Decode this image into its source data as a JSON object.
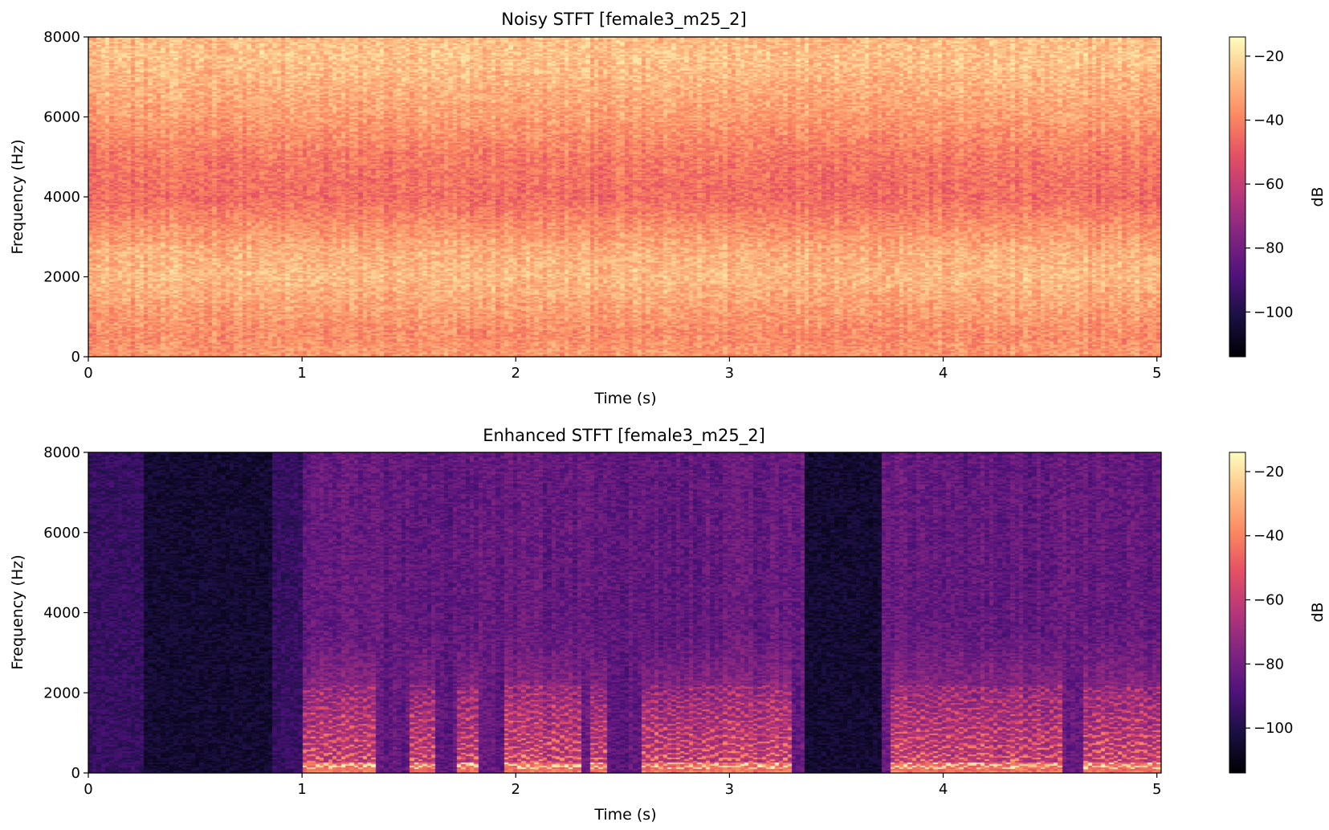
{
  "chart_data": [
    {
      "type": "heatmap",
      "title": "Noisy STFT [female3_m25_2]",
      "xlabel": "Time (s)",
      "ylabel": "Frequency (Hz)",
      "xlim": [
        0,
        5.02
      ],
      "ylim": [
        0,
        8000
      ],
      "xticks": [
        "0",
        "1",
        "2",
        "3",
        "4",
        "5"
      ],
      "yticks": [
        "0",
        "2000",
        "4000",
        "6000",
        "8000"
      ],
      "colormap": "magma",
      "colorbar": {
        "label": "dB",
        "range": [
          -114,
          -14
        ],
        "ticks": [
          "−20",
          "−40",
          "−60",
          "−80",
          "−100"
        ]
      },
      "profile": {
        "description_level_db_by_frequency": [
          {
            "freq_hz": 0,
            "db": -35
          },
          {
            "freq_hz": 600,
            "db": -38
          },
          {
            "freq_hz": 2000,
            "db": -28
          },
          {
            "freq_hz": 2600,
            "db": -30
          },
          {
            "freq_hz": 4000,
            "db": -45
          },
          {
            "freq_hz": 5000,
            "db": -42
          },
          {
            "freq_hz": 6000,
            "db": -34
          },
          {
            "freq_hz": 7500,
            "db": -26
          },
          {
            "freq_hz": 8000,
            "db": -28
          }
        ]
      }
    },
    {
      "type": "heatmap",
      "title": "Enhanced STFT [female3_m25_2]",
      "xlabel": "Time (s)",
      "ylabel": "Frequency (Hz)",
      "xlim": [
        0,
        5.02
      ],
      "ylim": [
        0,
        8000
      ],
      "xticks": [
        "0",
        "1",
        "2",
        "3",
        "4",
        "5"
      ],
      "yticks": [
        "0",
        "2000",
        "4000",
        "6000",
        "8000"
      ],
      "colormap": "magma",
      "colorbar": {
        "label": "dB",
        "range": [
          -114,
          -14
        ],
        "ticks": [
          "−20",
          "−40",
          "−60",
          "−80",
          "−100"
        ]
      },
      "speech_segments_s": [
        [
          1.0,
          1.35
        ],
        [
          1.5,
          1.62
        ],
        [
          1.72,
          1.82
        ],
        [
          1.95,
          2.3
        ],
        [
          2.35,
          2.42
        ],
        [
          2.6,
          3.1
        ],
        [
          3.1,
          3.3
        ],
        [
          3.75,
          4.25
        ],
        [
          4.2,
          4.55
        ],
        [
          4.65,
          5.02
        ]
      ],
      "silence_segments_s": [
        [
          0.27,
          0.87
        ],
        [
          3.35,
          3.72
        ]
      ]
    }
  ]
}
